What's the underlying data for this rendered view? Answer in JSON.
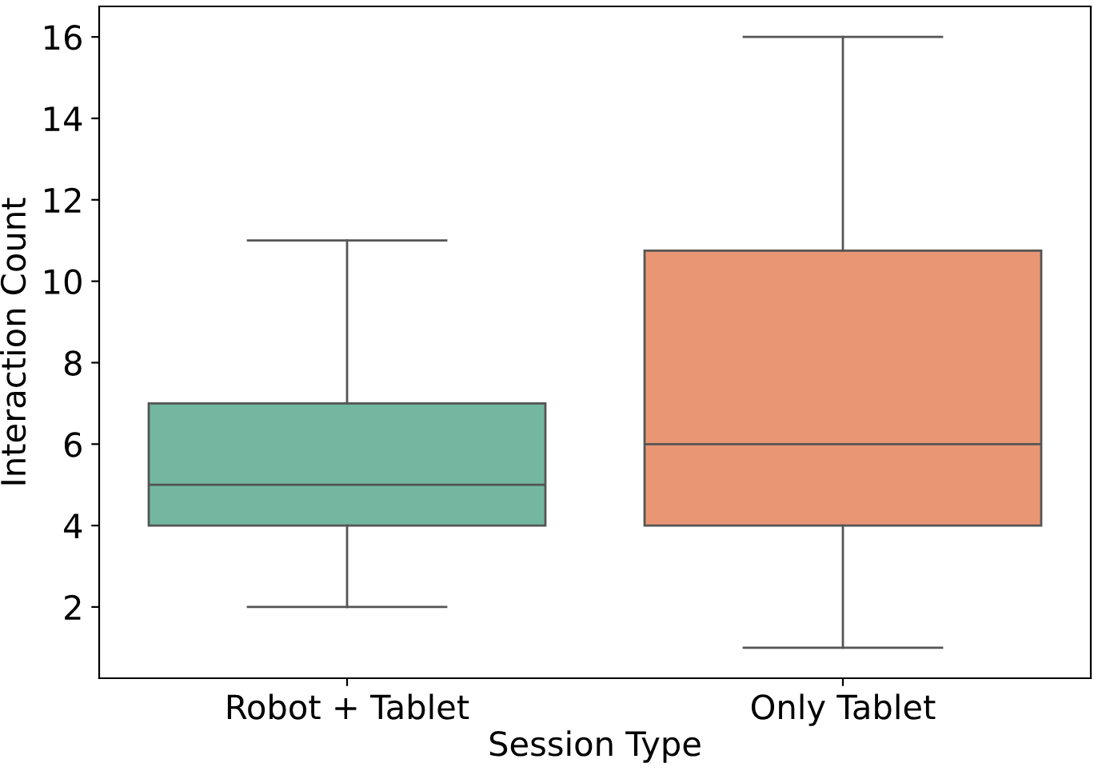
{
  "chart_data": {
    "type": "box",
    "xlabel": "Session Type",
    "ylabel": "Interaction Count",
    "categories": [
      "Robot + Tablet",
      "Only Tablet"
    ],
    "colors": [
      "#73b7a1",
      "#e99675"
    ],
    "boxes": [
      {
        "low": 2,
        "q1": 4,
        "median": 5,
        "q3": 7,
        "high": 11
      },
      {
        "low": 1,
        "q1": 4,
        "median": 6,
        "q3": 10.75,
        "high": 16
      }
    ],
    "ylim": [
      0.25,
      16.75
    ],
    "yticks": [
      2,
      4,
      6,
      8,
      10,
      12,
      14,
      16
    ],
    "grid": false
  }
}
